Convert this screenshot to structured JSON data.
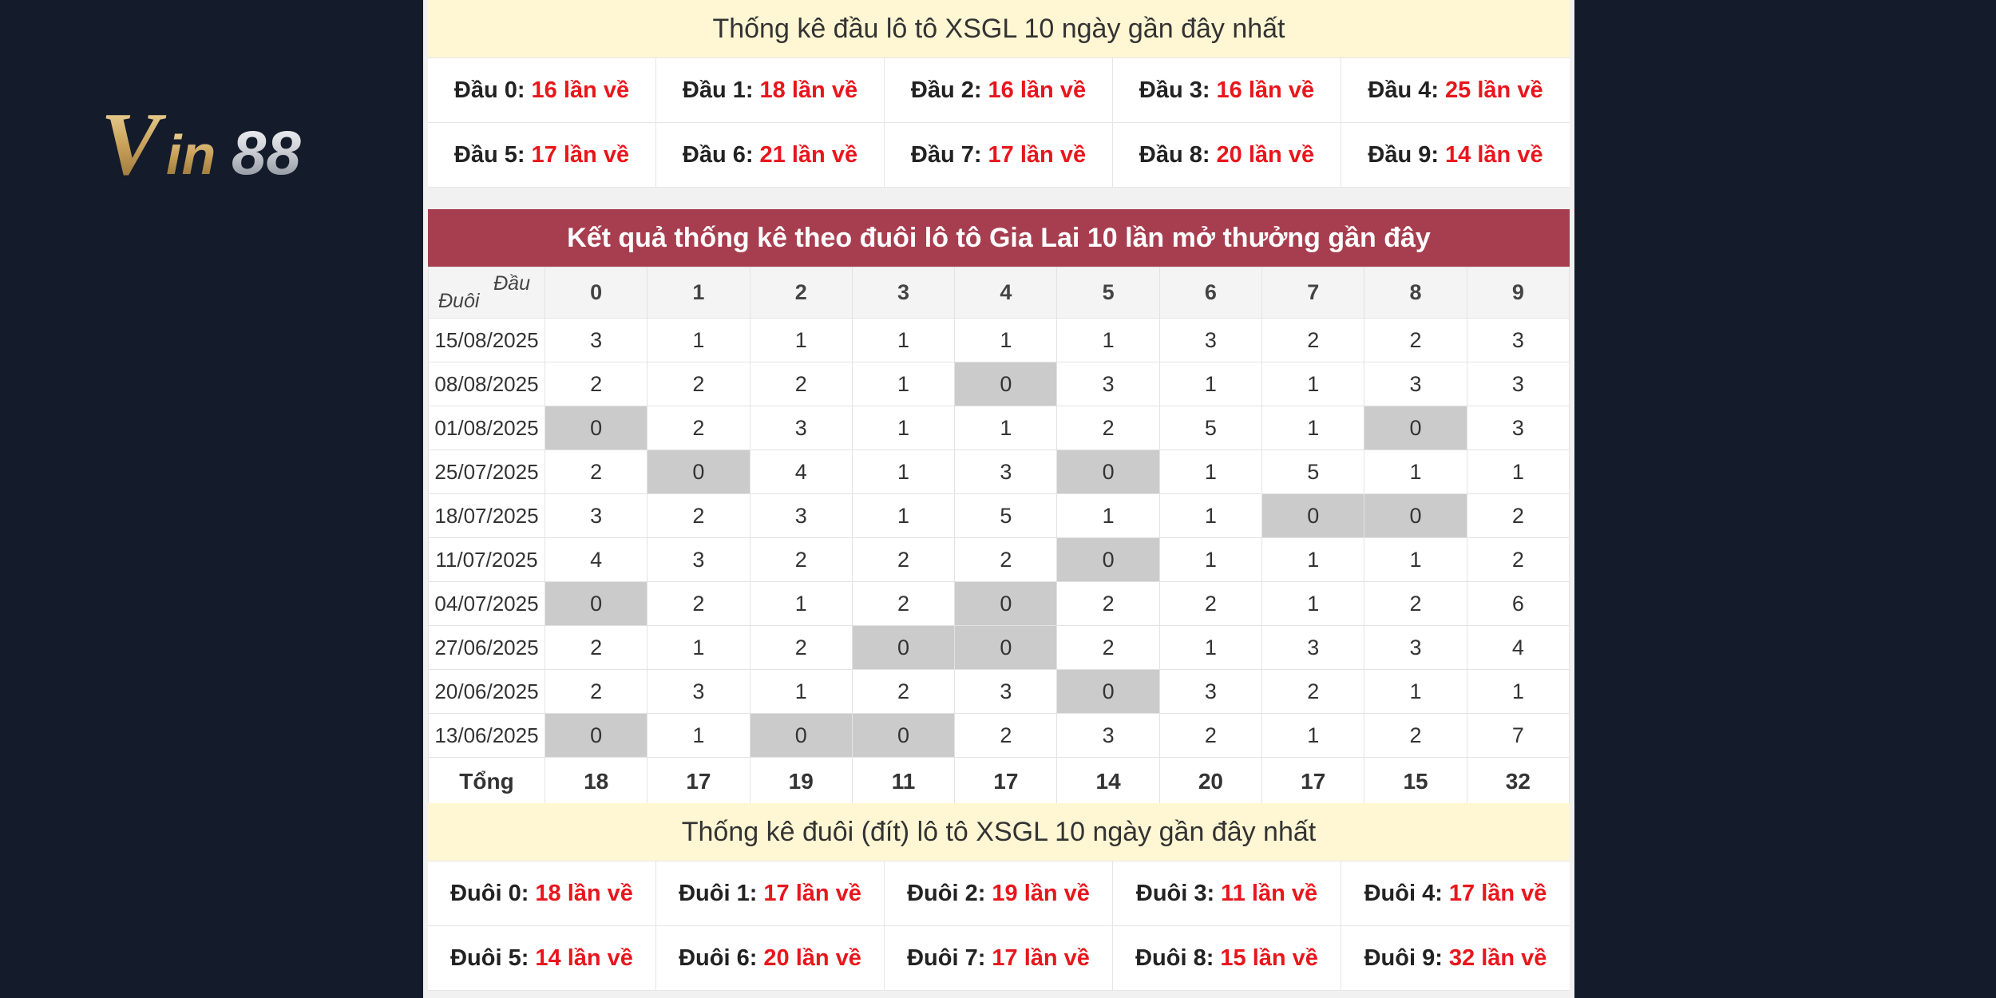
{
  "brand": {
    "logo_text": "Vin88"
  },
  "head_stats": {
    "title": "Thống kê đầu lô tô XSGL 10 ngày gần đây nhất",
    "items": [
      {
        "label": "Đầu 0:",
        "value": "16 lần về"
      },
      {
        "label": "Đầu 1:",
        "value": "18 lần về"
      },
      {
        "label": "Đầu 2:",
        "value": "16 lần về"
      },
      {
        "label": "Đầu 3:",
        "value": "16 lần về"
      },
      {
        "label": "Đầu 4:",
        "value": "25 lần về"
      },
      {
        "label": "Đầu 5:",
        "value": "17 lần về"
      },
      {
        "label": "Đầu 6:",
        "value": "21 lần về"
      },
      {
        "label": "Đầu 7:",
        "value": "17 lần về"
      },
      {
        "label": "Đầu 8:",
        "value": "20 lần về"
      },
      {
        "label": "Đầu 9:",
        "value": "14 lần về"
      }
    ]
  },
  "table": {
    "title": "Kết quả thống kê theo đuôi lô tô Gia Lai 10 lần mở thưởng gần đây",
    "corner_top": "Đầu",
    "corner_bottom": "Đuôi",
    "columns": [
      "0",
      "1",
      "2",
      "3",
      "4",
      "5",
      "6",
      "7",
      "8",
      "9"
    ],
    "rows": [
      {
        "date": "15/08/2025",
        "values": [
          "3",
          "1",
          "1",
          "1",
          "1",
          "1",
          "3",
          "2",
          "2",
          "3"
        ]
      },
      {
        "date": "08/08/2025",
        "values": [
          "2",
          "2",
          "2",
          "1",
          "0",
          "3",
          "1",
          "1",
          "3",
          "3"
        ]
      },
      {
        "date": "01/08/2025",
        "values": [
          "0",
          "2",
          "3",
          "1",
          "1",
          "2",
          "5",
          "1",
          "0",
          "3"
        ]
      },
      {
        "date": "25/07/2025",
        "values": [
          "2",
          "0",
          "4",
          "1",
          "3",
          "0",
          "1",
          "5",
          "1",
          "1"
        ]
      },
      {
        "date": "18/07/2025",
        "values": [
          "3",
          "2",
          "3",
          "1",
          "5",
          "1",
          "1",
          "0",
          "0",
          "2"
        ]
      },
      {
        "date": "11/07/2025",
        "values": [
          "4",
          "3",
          "2",
          "2",
          "2",
          "0",
          "1",
          "1",
          "1",
          "2"
        ]
      },
      {
        "date": "04/07/2025",
        "values": [
          "0",
          "2",
          "1",
          "2",
          "0",
          "2",
          "2",
          "1",
          "2",
          "6"
        ]
      },
      {
        "date": "27/06/2025",
        "values": [
          "2",
          "1",
          "2",
          "0",
          "0",
          "2",
          "1",
          "3",
          "3",
          "4"
        ]
      },
      {
        "date": "20/06/2025",
        "values": [
          "2",
          "3",
          "1",
          "2",
          "3",
          "0",
          "3",
          "2",
          "1",
          "1"
        ]
      },
      {
        "date": "13/06/2025",
        "values": [
          "0",
          "1",
          "0",
          "0",
          "2",
          "3",
          "2",
          "1",
          "2",
          "7"
        ]
      }
    ],
    "total_label": "Tổng",
    "totals": [
      "18",
      "17",
      "19",
      "11",
      "17",
      "14",
      "20",
      "17",
      "15",
      "32"
    ]
  },
  "tail_stats": {
    "title": "Thống kê đuôi (đít) lô tô XSGL 10 ngày gần đây nhất",
    "items": [
      {
        "label": "Đuôi 0:",
        "value": "18 lần về"
      },
      {
        "label": "Đuôi 1:",
        "value": "17 lần về"
      },
      {
        "label": "Đuôi 2:",
        "value": "19 lần về"
      },
      {
        "label": "Đuôi 3:",
        "value": "11 lần về"
      },
      {
        "label": "Đuôi 4:",
        "value": "17 lần về"
      },
      {
        "label": "Đuôi 5:",
        "value": "14 lần về"
      },
      {
        "label": "Đuôi 6:",
        "value": "20 lần về"
      },
      {
        "label": "Đuôi 7:",
        "value": "17 lần về"
      },
      {
        "label": "Đuôi 8:",
        "value": "15 lần về"
      },
      {
        "label": "Đuôi 9:",
        "value": "32 lần về"
      }
    ]
  },
  "colors": {
    "accent_red": "#a73e4f",
    "value_red": "#e8161c",
    "banner_yellow": "#fff6d3",
    "zero_gray": "#cbcbcb",
    "background": "#141c2b"
  }
}
